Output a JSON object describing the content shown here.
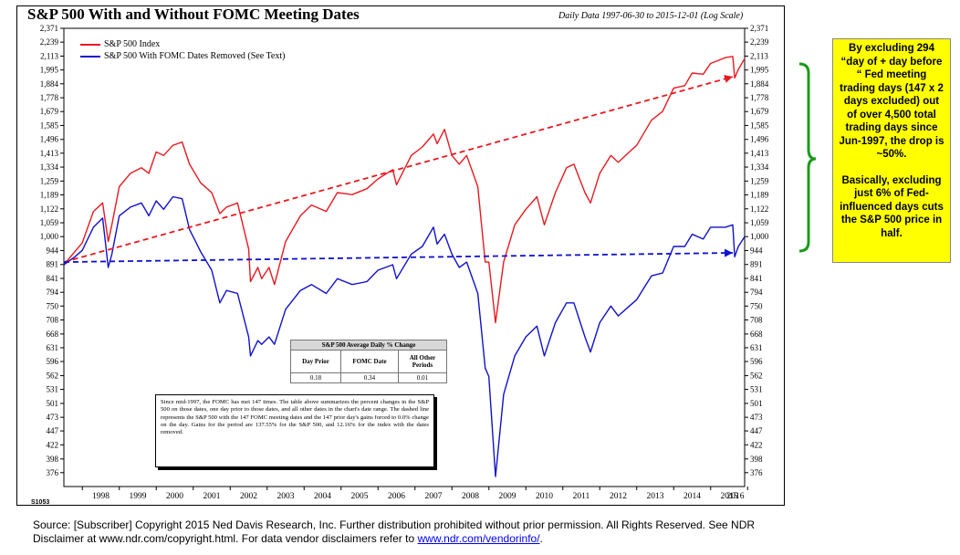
{
  "title": "S&P 500 With and Without FOMC Meeting Dates",
  "subtitle": "Daily Data 1997-06-30 to 2015-12-01 (Log Scale)",
  "chart_code": "S1053",
  "legend": [
    {
      "label": "S&P 500 Index",
      "color": "#e8191f"
    },
    {
      "label": "S&P 500 With FOMC Dates Removed (See Text)",
      "color": "#1111cc"
    }
  ],
  "stats_table": {
    "title": "S&P 500 Average Daily % Change",
    "headers": [
      "Day Prior",
      "FOMC Date",
      "All Other Periods"
    ],
    "values": [
      "0.18",
      "0.34",
      "0.01"
    ]
  },
  "note": "Since mid-1997, the FOMC has met 147 times. The table above summarizes the percent changes in the S&P 500 on those dates, one day prior to those dates, and all other dates in the chart's date range. The dashed line represents the S&P 500 with the 147 FOMC meeting dates and the 147 prior day's gains forced to 0.0% change on the day. Gains for the period are 137.55% for the S&P 500, and 12.16% for the index with the dates removed.",
  "callout": {
    "p1": "By excluding 294 “day of + day before “ Fed meeting trading days (147 x 2 days excluded) out of over 4,500 total trading days since Jun-1997, the drop is ~50%.",
    "p2": "Basically, excluding just 6% of Fed-influenced days cuts the S&P 500 price in half."
  },
  "footer": {
    "line1": "Source: [Subscriber] Copyright 2015 Ned Davis Research, Inc. Further distribution prohibited without prior permission. All Rights Reserved. See NDR",
    "line2_prefix": "Disclaimer at www.ndr.com/copyright.html. For data vendor disclaimers refer to ",
    "link": "www.ndr.com/vendorinfo/",
    "line2_suffix": "."
  },
  "chart_data": {
    "type": "line",
    "scale": "log",
    "y_ticks": [
      376,
      398,
      422,
      447,
      473,
      501,
      531,
      562,
      596,
      631,
      668,
      708,
      750,
      794,
      841,
      891,
      944,
      1000,
      1059,
      1122,
      1189,
      1259,
      1334,
      1413,
      1496,
      1585,
      1679,
      1778,
      1884,
      1995,
      2113,
      2239,
      2371
    ],
    "y_tick_labels": [
      "376",
      "398",
      "422",
      "447",
      "473",
      "501",
      "531",
      "562",
      "596",
      "631",
      "668",
      "708",
      "750",
      "794",
      "841",
      "891",
      "944",
      "1,000",
      "1,059",
      "1,122",
      "1,189",
      "1,259",
      "1,334",
      "1,413",
      "1,496",
      "1,585",
      "1,679",
      "1,778",
      "1,884",
      "1,995",
      "2,113",
      "2,239",
      "2,371"
    ],
    "x_ticks": [
      "1998",
      "1999",
      "2000",
      "2001",
      "2002",
      "2003",
      "2004",
      "2005",
      "2006",
      "2007",
      "2008",
      "2009",
      "2010",
      "2011",
      "2012",
      "2013",
      "2014",
      "2015",
      "2016"
    ],
    "x_range": [
      1997.5,
      2015.92
    ],
    "y_range": [
      355,
      2371
    ],
    "series": [
      {
        "name": "S&P 500 Index",
        "color": "#e8191f",
        "x": [
          1997.5,
          1997.8,
          1998.0,
          1998.3,
          1998.55,
          1998.7,
          1998.8,
          1999.0,
          1999.3,
          1999.6,
          1999.8,
          2000.0,
          2000.2,
          2000.45,
          2000.7,
          2000.9,
          2001.2,
          2001.5,
          2001.72,
          2001.9,
          2002.2,
          2002.5,
          2002.55,
          2002.75,
          2002.85,
          2003.05,
          2003.2,
          2003.5,
          2003.9,
          2004.2,
          2004.6,
          2004.9,
          2005.3,
          2005.7,
          2006.0,
          2006.4,
          2006.5,
          2006.9,
          2007.2,
          2007.5,
          2007.6,
          2007.8,
          2008.0,
          2008.2,
          2008.4,
          2008.7,
          2008.9,
          2009.0,
          2009.18,
          2009.4,
          2009.7,
          2010.0,
          2010.3,
          2010.5,
          2010.8,
          2011.1,
          2011.3,
          2011.6,
          2011.75,
          2012.0,
          2012.3,
          2012.5,
          2012.8,
          2013.0,
          2013.4,
          2013.7,
          2014.0,
          2014.3,
          2014.5,
          2014.8,
          2015.0,
          2015.4,
          2015.6,
          2015.65,
          2015.75,
          2015.92
        ],
        "y": [
          890,
          940,
          975,
          1110,
          1150,
          980,
          1050,
          1230,
          1300,
          1330,
          1300,
          1420,
          1400,
          1460,
          1480,
          1350,
          1250,
          1200,
          1100,
          1130,
          1150,
          950,
          830,
          880,
          840,
          880,
          820,
          980,
          1090,
          1140,
          1110,
          1200,
          1190,
          1220,
          1270,
          1320,
          1240,
          1400,
          1450,
          1530,
          1470,
          1560,
          1400,
          1350,
          1400,
          1230,
          900,
          900,
          700,
          900,
          1050,
          1120,
          1180,
          1050,
          1200,
          1330,
          1350,
          1200,
          1150,
          1300,
          1400,
          1360,
          1420,
          1460,
          1620,
          1680,
          1850,
          1870,
          1970,
          1960,
          2050,
          2100,
          2110,
          1930,
          2000,
          2090
        ]
      },
      {
        "name": "S&P 500 With FOMC Dates Removed (See Text)",
        "color": "#1111cc",
        "x": [
          1997.5,
          1997.8,
          1998.0,
          1998.3,
          1998.55,
          1998.7,
          1998.8,
          1999.0,
          1999.3,
          1999.6,
          1999.8,
          2000.0,
          2000.2,
          2000.45,
          2000.7,
          2000.9,
          2001.2,
          2001.5,
          2001.72,
          2001.9,
          2002.2,
          2002.5,
          2002.55,
          2002.75,
          2002.85,
          2003.05,
          2003.2,
          2003.5,
          2003.9,
          2004.2,
          2004.6,
          2004.9,
          2005.3,
          2005.7,
          2006.0,
          2006.4,
          2006.5,
          2006.9,
          2007.2,
          2007.5,
          2007.6,
          2007.8,
          2008.0,
          2008.2,
          2008.4,
          2008.7,
          2008.9,
          2009.0,
          2009.18,
          2009.4,
          2009.7,
          2010.0,
          2010.3,
          2010.5,
          2010.8,
          2011.1,
          2011.3,
          2011.6,
          2011.75,
          2012.0,
          2012.3,
          2012.5,
          2012.8,
          2013.0,
          2013.4,
          2013.7,
          2014.0,
          2014.3,
          2014.5,
          2014.8,
          2015.0,
          2015.4,
          2015.6,
          2015.65,
          2015.75,
          2015.92
        ],
        "y": [
          890,
          920,
          945,
          1040,
          1080,
          880,
          930,
          1090,
          1130,
          1150,
          1090,
          1160,
          1120,
          1180,
          1170,
          1030,
          940,
          870,
          760,
          800,
          790,
          660,
          610,
          650,
          640,
          660,
          640,
          740,
          800,
          820,
          790,
          840,
          820,
          830,
          870,
          890,
          840,
          930,
          960,
          1040,
          970,
          1010,
          930,
          880,
          900,
          790,
          580,
          560,
          370,
          520,
          610,
          660,
          690,
          610,
          700,
          760,
          760,
          660,
          620,
          700,
          750,
          720,
          750,
          770,
          850,
          860,
          960,
          960,
          1010,
          990,
          1040,
          1040,
          1050,
          920,
          960,
          1000
        ]
      }
    ],
    "dashed_lines": [
      {
        "color": "#e8191f",
        "x": [
          1997.5,
          2015.6
        ],
        "y": [
          900,
          1940
        ]
      },
      {
        "color": "#1111cc",
        "x": [
          1997.5,
          2015.6
        ],
        "y": [
          900,
          935
        ]
      }
    ]
  }
}
